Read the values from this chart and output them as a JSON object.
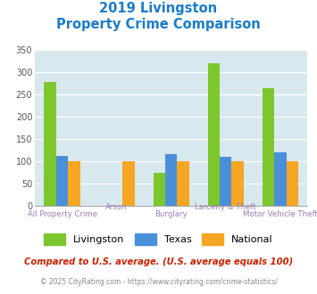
{
  "title_line1": "2019 Livingston",
  "title_line2": "Property Crime Comparison",
  "categories_top": [
    "",
    "Arson",
    "",
    "Larceny & Theft",
    ""
  ],
  "categories_bottom": [
    "All Property Crime",
    "",
    "Burglary",
    "",
    "Motor Vehicle Theft"
  ],
  "livingston": [
    278,
    0,
    75,
    320,
    265
  ],
  "texas": [
    113,
    0,
    116,
    110,
    121
  ],
  "national": [
    100,
    100,
    100,
    100,
    100
  ],
  "livingston_color": "#7dc62e",
  "texas_color": "#4a90d9",
  "national_color": "#f5a623",
  "background_color": "#d8e8ef",
  "ylim": [
    0,
    350
  ],
  "yticks": [
    0,
    50,
    100,
    150,
    200,
    250,
    300,
    350
  ],
  "label_color": "#9e7bb5",
  "title_color": "#1a7ccc",
  "footer_note": "Compared to U.S. average. (U.S. average equals 100)",
  "footer_credit": "© 2025 CityRating.com - https://www.cityrating.com/crime-statistics/",
  "bar_width": 0.22
}
